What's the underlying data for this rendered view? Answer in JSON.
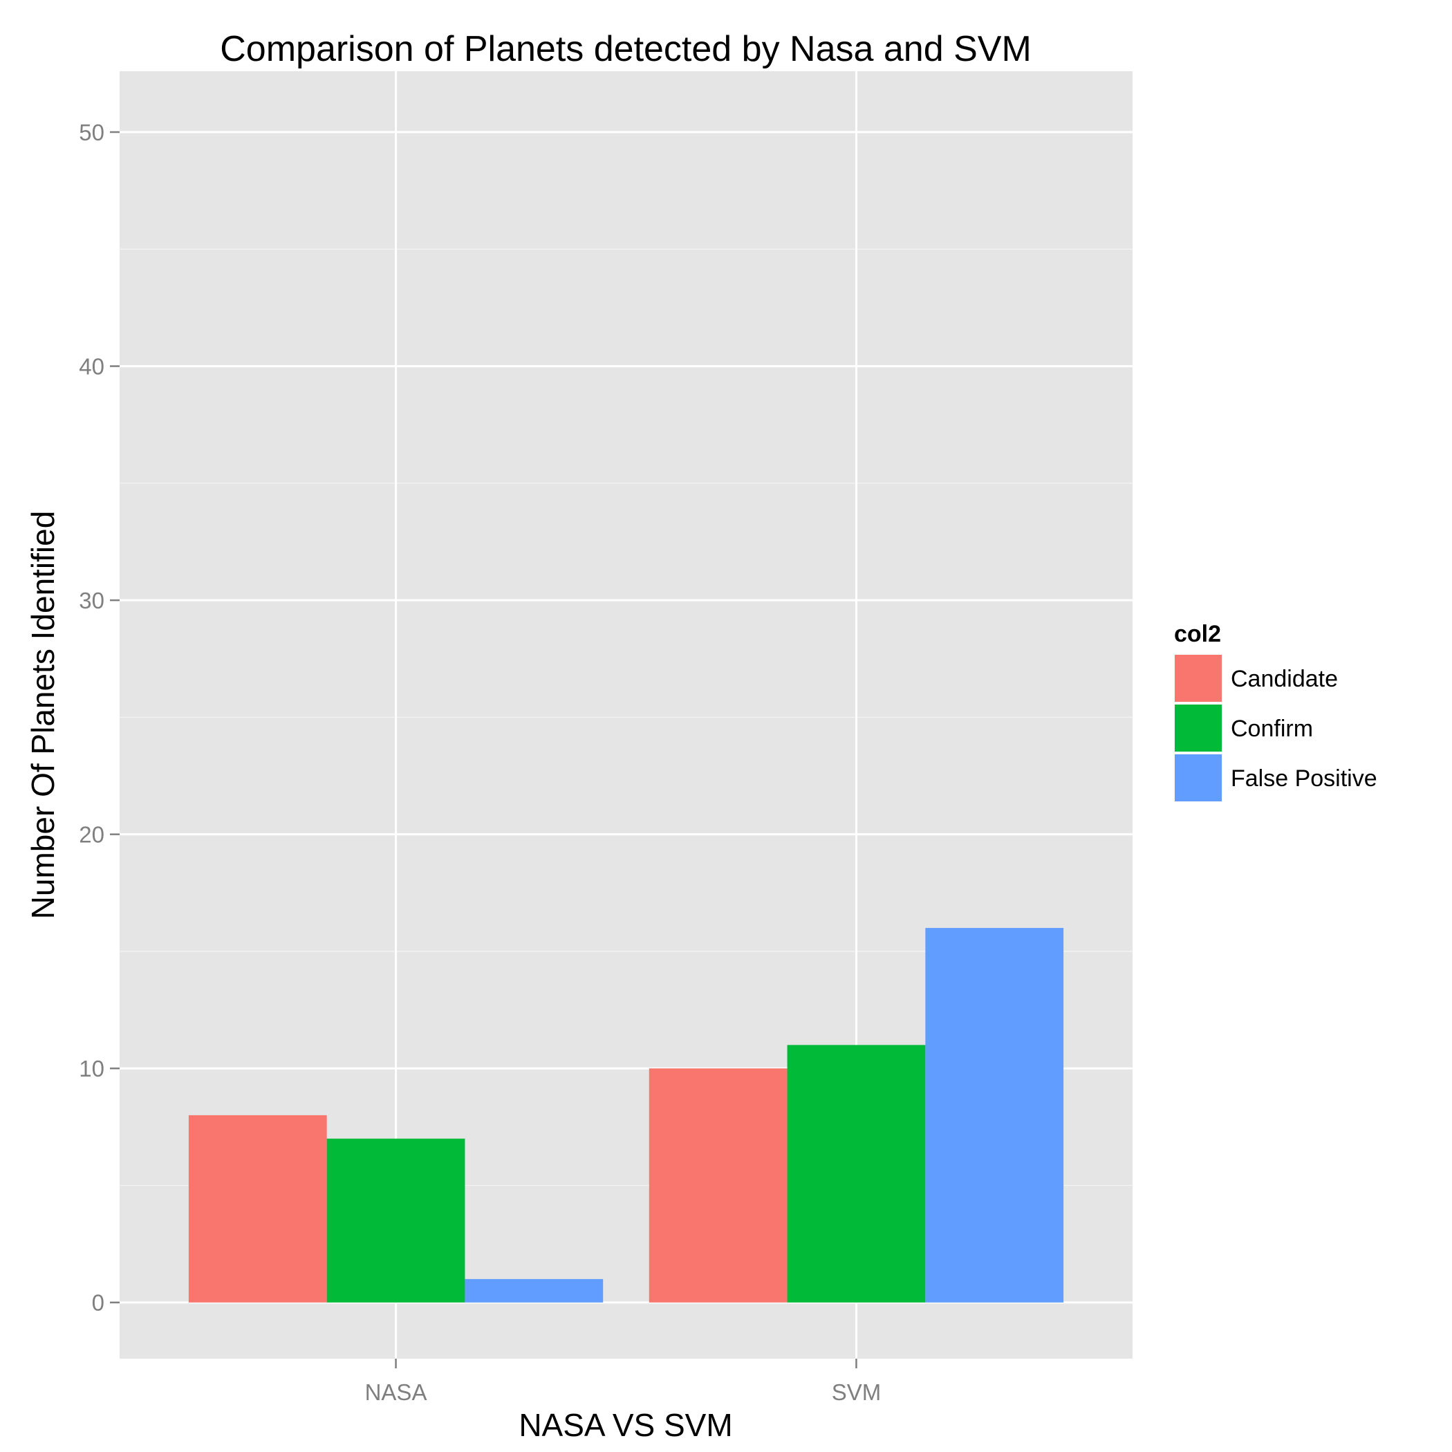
{
  "chart_data": {
    "type": "bar",
    "title": "Comparison of Planets detected by Nasa and SVM",
    "xlabel": "NASA VS SVM",
    "ylabel": "Number Of Planets Identified",
    "categories": [
      "NASA",
      "SVM"
    ],
    "series": [
      {
        "name": "Candidate",
        "color": "#F8766D",
        "values": [
          8,
          10
        ]
      },
      {
        "name": "Confirm",
        "color": "#00BA38",
        "values": [
          7,
          11
        ]
      },
      {
        "name": "False Positive",
        "color": "#619CFF",
        "values": [
          1,
          16
        ]
      }
    ],
    "ylim": [
      -2.4,
      52.6
    ],
    "yticks": [
      0,
      10,
      20,
      30,
      40,
      50
    ],
    "grid": true,
    "legend": {
      "title": "col2",
      "position": "right"
    },
    "panel_color": "#E5E5E5",
    "grid_color": "#FFFFFF"
  }
}
